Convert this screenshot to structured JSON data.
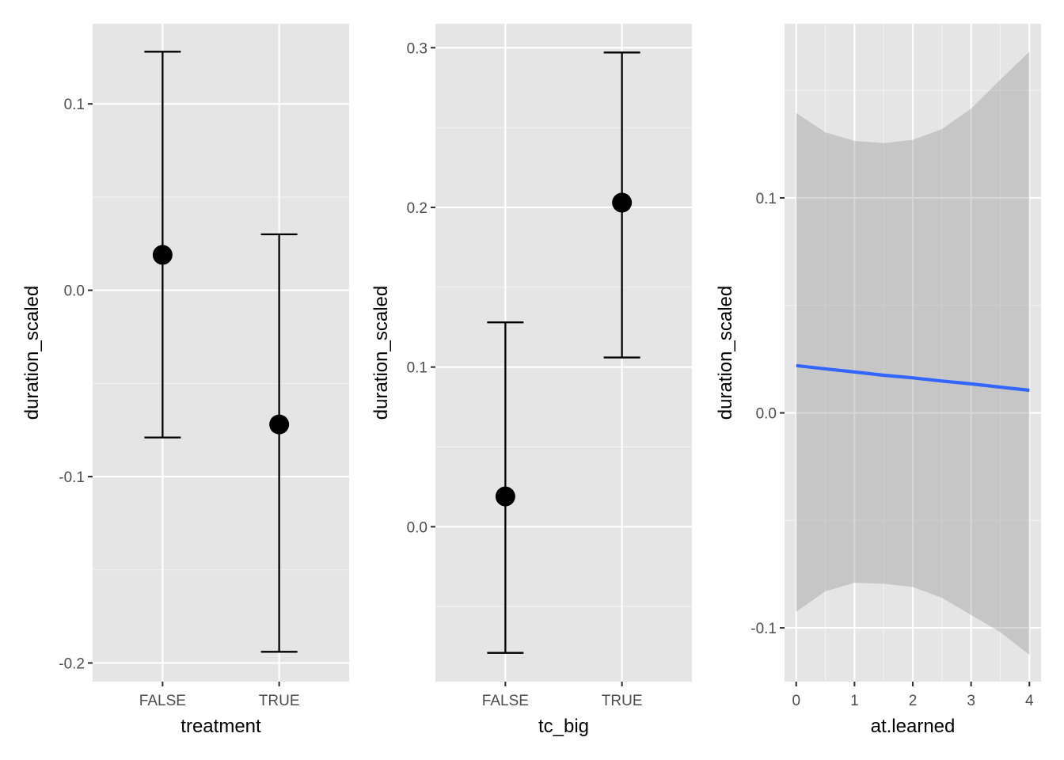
{
  "chart_data": [
    {
      "type": "errorbar",
      "xlabel": "treatment",
      "ylabel": "duration_scaled",
      "categories": [
        "FALSE",
        "TRUE"
      ],
      "estimates": [
        0.019,
        -0.072
      ],
      "lower": [
        -0.079,
        -0.194
      ],
      "upper": [
        0.128,
        0.03
      ],
      "ylim": [
        -0.21,
        0.143
      ],
      "yticks": [
        -0.2,
        -0.1,
        0.0,
        0.1
      ],
      "ytick_labels": [
        "-0.2",
        "-0.1",
        "0.0",
        "0.1"
      ],
      "grid": true
    },
    {
      "type": "errorbar",
      "xlabel": "tc_big",
      "ylabel": "duration_scaled",
      "categories": [
        "FALSE",
        "TRUE"
      ],
      "estimates": [
        0.019,
        0.203
      ],
      "lower": [
        -0.079,
        0.106
      ],
      "upper": [
        0.128,
        0.297
      ],
      "ylim": [
        -0.097,
        0.315
      ],
      "yticks": [
        0.0,
        0.1,
        0.2,
        0.3
      ],
      "ytick_labels": [
        "0.0",
        "0.1",
        "0.2",
        "0.3"
      ],
      "grid": true
    },
    {
      "type": "line",
      "xlabel": "at.learned",
      "ylabel": "duration_scaled",
      "x": [
        0,
        0.5,
        1,
        1.5,
        2,
        2.5,
        3,
        3.5,
        4
      ],
      "y": [
        0.022,
        0.0205,
        0.019,
        0.0175,
        0.0163,
        0.0148,
        0.0135,
        0.012,
        0.0105
      ],
      "ci_lower": [
        -0.0925,
        -0.083,
        -0.079,
        -0.0795,
        -0.081,
        -0.086,
        -0.094,
        -0.102,
        -0.1125
      ],
      "ci_upper": [
        0.1395,
        0.1305,
        0.1265,
        0.1255,
        0.127,
        0.132,
        0.1415,
        0.155,
        0.168
      ],
      "xlim": [
        -0.2,
        4.2
      ],
      "ylim": [
        -0.125,
        0.181
      ],
      "xticks": [
        0,
        1,
        2,
        3,
        4
      ],
      "xtick_labels": [
        "0",
        "1",
        "2",
        "3",
        "4"
      ],
      "yticks": [
        -0.1,
        0.0,
        0.1
      ],
      "ytick_labels": [
        "-0.1",
        "0.0",
        "0.1"
      ],
      "colors": {
        "line": "#3366ff",
        "ribbon": "#999999"
      },
      "grid": true
    }
  ]
}
